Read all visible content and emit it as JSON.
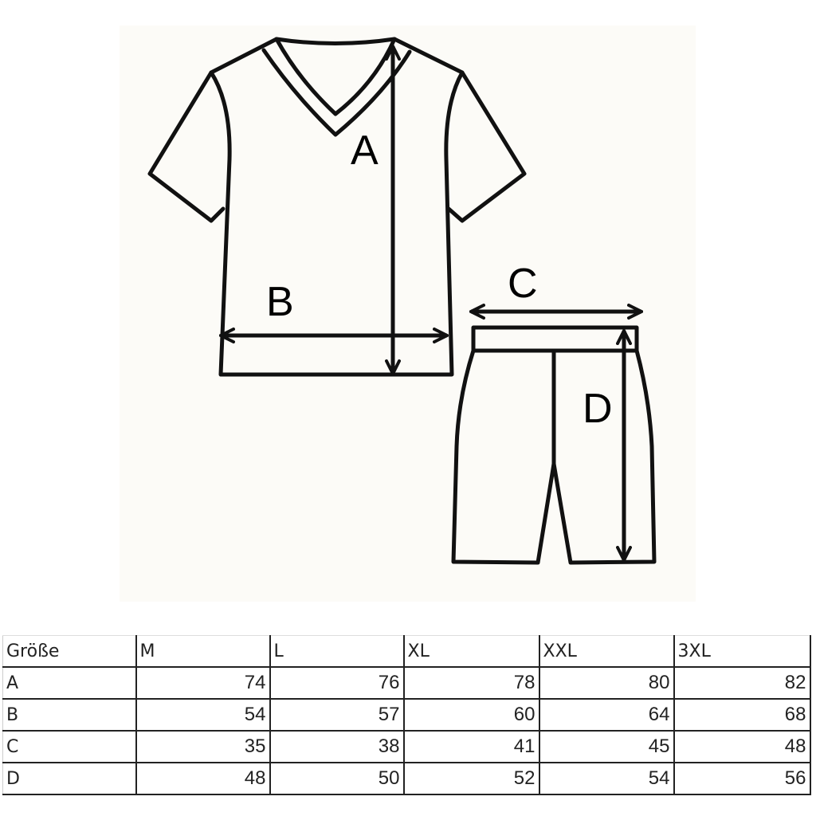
{
  "diagram": {
    "labels": {
      "A": "A",
      "B": "B",
      "C": "C",
      "D": "D"
    },
    "background": "#fcfbf7"
  },
  "table": {
    "header": [
      "Größe",
      "M",
      "L",
      "XL",
      "XXL",
      "3XL"
    ],
    "rows": [
      {
        "label": "A",
        "values": [
          "74",
          "76",
          "78",
          "80",
          "82"
        ]
      },
      {
        "label": "B",
        "values": [
          "54",
          "57",
          "60",
          "64",
          "68"
        ]
      },
      {
        "label": "C",
        "values": [
          "35",
          "38",
          "41",
          "45",
          "48"
        ]
      },
      {
        "label": "D",
        "values": [
          "48",
          "50",
          "52",
          "54",
          "56"
        ]
      }
    ]
  }
}
